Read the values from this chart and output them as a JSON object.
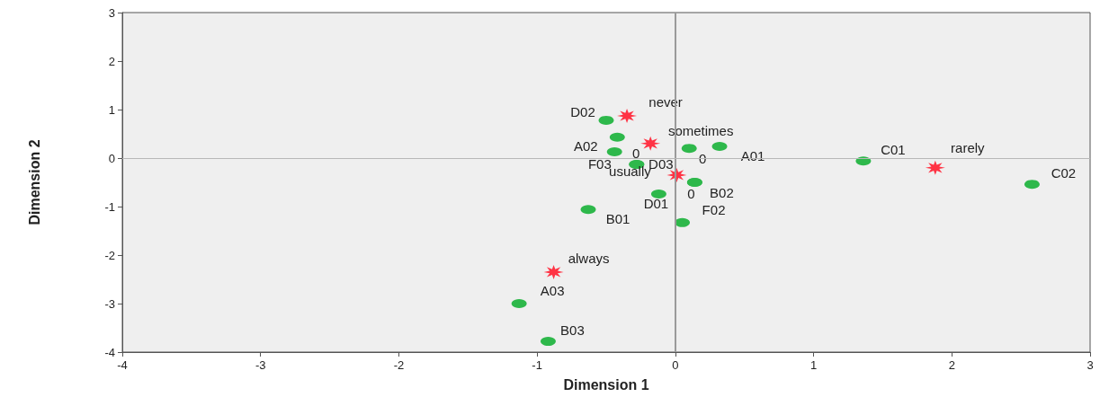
{
  "chart_data": {
    "type": "scatter",
    "xlabel": "Dimension 1",
    "ylabel": "Dimension 2",
    "xlim": [
      -4,
      3
    ],
    "xticks": [
      -4,
      -3,
      -2,
      -1,
      0,
      1,
      2,
      3
    ],
    "ylim": [
      -4,
      3
    ],
    "yticks": [
      -4,
      -3,
      -2,
      -1,
      0,
      1,
      2,
      3
    ],
    "grid": false,
    "ref_lines": [
      {
        "axis": "x",
        "value": 0,
        "color": "#9a9a9a"
      },
      {
        "axis": "y",
        "value": 0,
        "color": "#b8b8b8"
      }
    ],
    "series": [
      {
        "color": "#2eb84b",
        "marker": "circle",
        "x": [
          -0.5,
          -0.42,
          -0.44,
          -0.28,
          -0.28,
          0.1,
          0.32,
          0.14,
          0.14,
          -0.12,
          0.05,
          -0.63,
          1.36,
          2.58,
          -1.13,
          -0.92
        ],
        "values": [
          0.78,
          0.43,
          0.13,
          -0.13,
          -0.13,
          0.2,
          0.24,
          -0.5,
          -0.5,
          -0.74,
          -1.33,
          -1.06,
          -0.06,
          -0.54,
          -3.0,
          -3.78
        ],
        "value_labels": [
          "D02",
          "A02",
          "0",
          "F03",
          "D03",
          "0",
          "A01",
          "0",
          "B02",
          "D01",
          "F02",
          "B01",
          "C01",
          "C02",
          "A03",
          "B03"
        ]
      },
      {
        "color": "#ff3344",
        "marker": "star",
        "x": [
          -0.35,
          -0.18,
          0.01,
          1.88,
          -0.88
        ],
        "values": [
          0.87,
          0.3,
          -0.35,
          -0.2,
          -2.35
        ],
        "value_labels": [
          "never",
          "sometimes",
          "usually",
          "rarely",
          "always"
        ]
      }
    ]
  }
}
